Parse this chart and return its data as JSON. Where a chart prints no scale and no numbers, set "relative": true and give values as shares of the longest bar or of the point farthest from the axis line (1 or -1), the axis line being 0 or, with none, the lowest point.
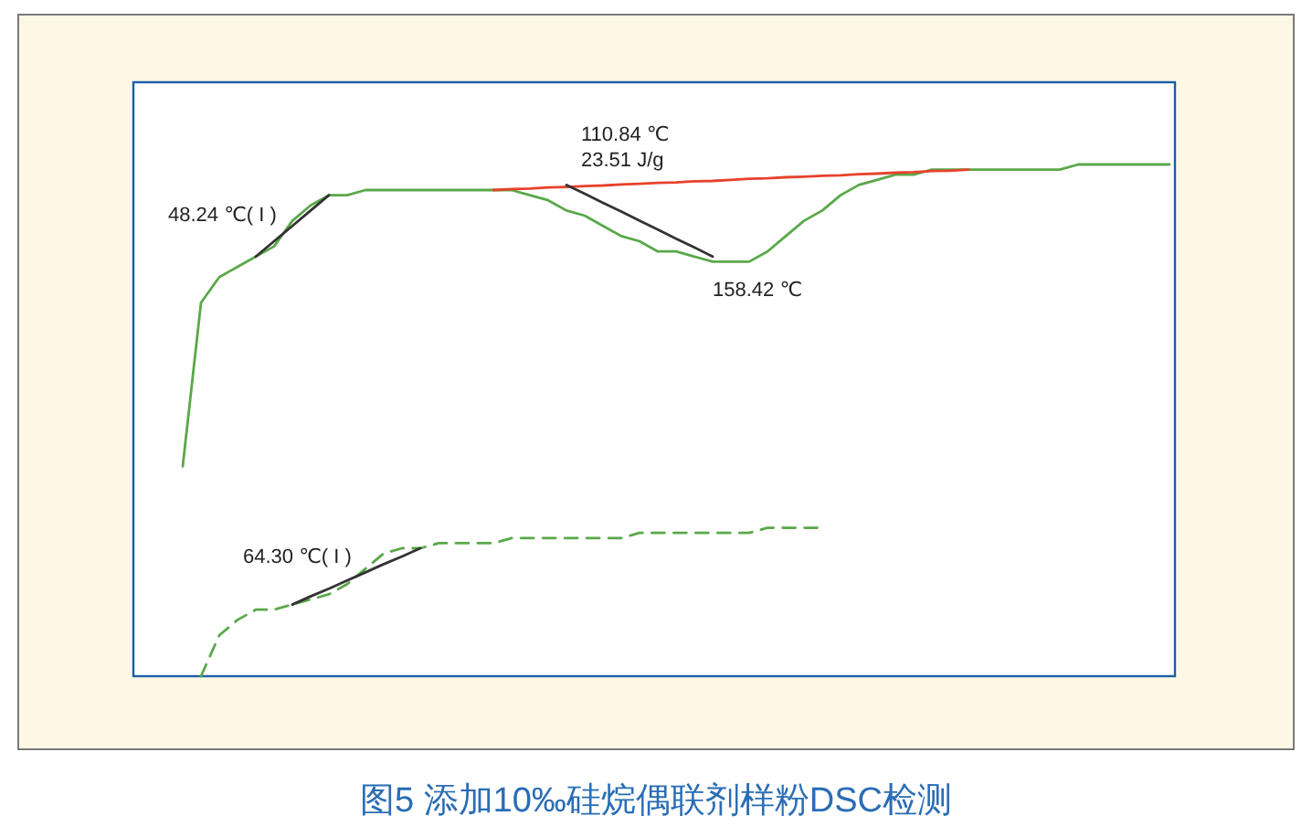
{
  "chart_data": {
    "type": "line",
    "relative": true,
    "title": "图5 添加10‰硅烷偶联剂样粉DSC检测",
    "categories": [
      null,
      null,
      null,
      null,
      null,
      null,
      null,
      null,
      null,
      null,
      null,
      null,
      null,
      null,
      null,
      null,
      null,
      null,
      null,
      null,
      null,
      null,
      null,
      null,
      null,
      null,
      null,
      null,
      null,
      null,
      null,
      null,
      null,
      null,
      null,
      null,
      null,
      null,
      null,
      null,
      null,
      null,
      null,
      null,
      null,
      null,
      null,
      null,
      null,
      null,
      null,
      null,
      null,
      null,
      null
    ],
    "series": [
      {
        "color": "#5aa84a",
        "line_style": "solid",
        "values": [
          0.41,
          0.73,
          0.78,
          0.8,
          0.82,
          0.84,
          0.89,
          0.92,
          0.94,
          0.94,
          0.95,
          0.95,
          0.95,
          0.95,
          0.95,
          0.95,
          0.95,
          0.95,
          0.95,
          0.94,
          0.93,
          0.91,
          0.9,
          0.88,
          0.86,
          0.85,
          0.83,
          0.83,
          0.82,
          0.81,
          0.81,
          0.81,
          0.83,
          0.86,
          0.89,
          0.91,
          0.94,
          0.96,
          0.97,
          0.98,
          0.98,
          0.99,
          0.99,
          0.99,
          0.99,
          0.99,
          0.99,
          0.99,
          0.99,
          1,
          1,
          1,
          1,
          1,
          1
        ]
      },
      {
        "color": "#5aa84a",
        "line_style": "dashed",
        "values": [
          null,
          0,
          0.08,
          0.11,
          0.13,
          0.13,
          0.14,
          0.15,
          0.16,
          0.18,
          0.21,
          0.24,
          0.25,
          0.25,
          0.26,
          0.26,
          0.26,
          0.26,
          0.27,
          0.27,
          0.27,
          0.27,
          0.27,
          0.27,
          0.27,
          0.28,
          0.28,
          0.28,
          0.28,
          0.28,
          0.28,
          0.28,
          0.29,
          0.29,
          0.29,
          0.29,
          null,
          null,
          null,
          null,
          null,
          null,
          null,
          null,
          null,
          null,
          null,
          null,
          null,
          null,
          null,
          null,
          null,
          null,
          null
        ]
      },
      {
        "color": "#e8412c",
        "line_style": "solid",
        "values": [
          null,
          null,
          null,
          null,
          null,
          null,
          null,
          null,
          null,
          null,
          null,
          null,
          null,
          null,
          null,
          null,
          null,
          0.95,
          0.952,
          0.953,
          0.955,
          0.956,
          0.958,
          0.959,
          0.961,
          0.962,
          0.964,
          0.965,
          0.967,
          0.968,
          0.97,
          0.972,
          0.973,
          0.975,
          0.976,
          0.978,
          0.979,
          0.981,
          0.982,
          0.984,
          0.985,
          0.987,
          0.988,
          0.99,
          null,
          null,
          null,
          null,
          null,
          null,
          null,
          null,
          null,
          null,
          null
        ]
      },
      {
        "color": "#333333",
        "line_style": "solid",
        "values": [
          null,
          null,
          null,
          null,
          null,
          null,
          null,
          null,
          null,
          null,
          null,
          null,
          null,
          null,
          null,
          null,
          null,
          null,
          null,
          null,
          null,
          0.96,
          0.943,
          0.925,
          0.908,
          0.89,
          0.873,
          0.855,
          0.838,
          0.82,
          null,
          null,
          null,
          null,
          null,
          null,
          null,
          null,
          null,
          null,
          null,
          null,
          null,
          null,
          null,
          null,
          null,
          null,
          null,
          null,
          null,
          null,
          null,
          null,
          null
        ]
      },
      {
        "color": "#333333",
        "line_style": "solid",
        "values": [
          null,
          null,
          null,
          null,
          0.82,
          0.85,
          0.88,
          0.91,
          0.94,
          null,
          null,
          null,
          null,
          null,
          null,
          null,
          null,
          null,
          null,
          null,
          null,
          null,
          null,
          null,
          null,
          null,
          null,
          null,
          null,
          null,
          null,
          null,
          null,
          null,
          null,
          null,
          null,
          null,
          null,
          null,
          null,
          null,
          null,
          null,
          null,
          null,
          null,
          null,
          null,
          null,
          null,
          null,
          null,
          null,
          null
        ]
      },
      {
        "color": "#333333",
        "line_style": "solid",
        "values": [
          null,
          null,
          null,
          null,
          null,
          null,
          0.14,
          0.156,
          0.171,
          0.187,
          0.203,
          0.219,
          0.234,
          0.25,
          null,
          null,
          null,
          null,
          null,
          null,
          null,
          null,
          null,
          null,
          null,
          null,
          null,
          null,
          null,
          null,
          null,
          null,
          null,
          null,
          null,
          null,
          null,
          null,
          null,
          null,
          null,
          null,
          null,
          null,
          null,
          null,
          null,
          null,
          null,
          null,
          null,
          null,
          null,
          null,
          null
        ]
      }
    ],
    "annotations": [
      "48.24 ℃( I )",
      "110.84 ℃\n23.51 J/g",
      "158.42 ℃",
      "64.30 ℃( I )"
    ]
  }
}
